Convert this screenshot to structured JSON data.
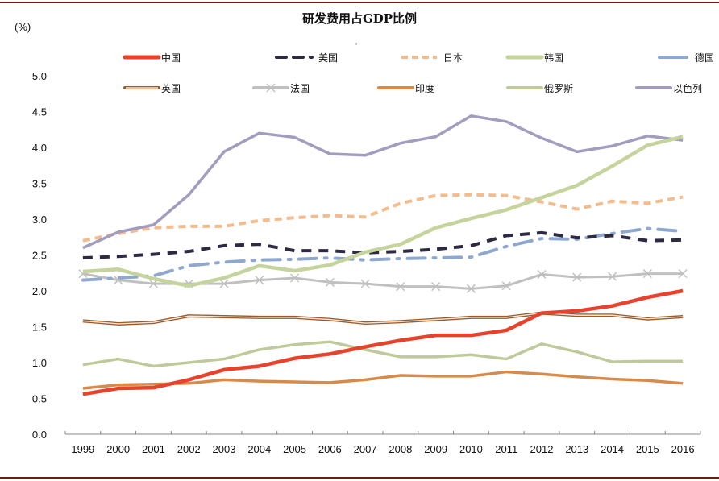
{
  "header": {
    "title": "研发费用占GDP比例",
    "unit_label": "(%)",
    "stray_mark": "‘"
  },
  "colors": {
    "rule": "#6b1d14",
    "axis": "#888888"
  },
  "chart_data": {
    "type": "line",
    "title": "研发费用占GDP比例",
    "xlabel": "",
    "ylabel": "(%)",
    "ylim": [
      0.0,
      5.0
    ],
    "y_ticks": [
      "0.0",
      "0.5",
      "1.0",
      "1.5",
      "2.0",
      "2.5",
      "3.0",
      "3.5",
      "4.0",
      "4.5",
      "5.0"
    ],
    "grid": false,
    "legend_position": "top",
    "categories": [
      "1999",
      "2000",
      "2001",
      "2002",
      "2003",
      "2004",
      "2005",
      "2006",
      "2007",
      "2008",
      "2009",
      "2010",
      "2011",
      "2012",
      "2013",
      "2014",
      "2015",
      "2016"
    ],
    "series": [
      {
        "name": "中国",
        "style": "solid",
        "color": "#e8412c",
        "values": [
          0.56,
          0.64,
          0.65,
          0.76,
          0.9,
          0.95,
          1.06,
          1.12,
          1.22,
          1.31,
          1.38,
          1.38,
          1.45,
          1.69,
          1.72,
          1.79,
          1.91,
          2.0
        ]
      },
      {
        "name": "美国",
        "style": "dash",
        "color": "#2e2a44",
        "values": [
          2.46,
          2.48,
          2.51,
          2.55,
          2.63,
          2.65,
          2.56,
          2.56,
          2.53,
          2.55,
          2.58,
          2.63,
          2.77,
          2.81,
          2.74,
          2.77,
          2.7,
          2.71
        ]
      },
      {
        "name": "日本",
        "style": "shortdash",
        "color": "#f4bc8c",
        "values": [
          2.7,
          2.8,
          2.88,
          2.9,
          2.9,
          2.98,
          3.02,
          3.05,
          3.03,
          3.22,
          3.33,
          3.34,
          3.33,
          3.24,
          3.14,
          3.25,
          3.22,
          3.31
        ]
      },
      {
        "name": "韩国",
        "style": "solid",
        "color": "#c5d49c",
        "values": [
          2.27,
          2.3,
          2.17,
          2.07,
          2.18,
          2.35,
          2.28,
          2.36,
          2.54,
          2.65,
          2.88,
          3.01,
          3.13,
          3.3,
          3.47,
          3.74,
          4.03,
          4.15
        ]
      },
      {
        "name": "德国",
        "style": "dashdot",
        "color": "#8ea8cf",
        "values": [
          2.15,
          2.18,
          2.21,
          2.35,
          2.4,
          2.43,
          2.44,
          2.46,
          2.43,
          2.45,
          2.46,
          2.47,
          2.62,
          2.73,
          2.72,
          2.8,
          2.87,
          2.83
        ]
      },
      {
        "name": "英国",
        "style": "double",
        "color": "#9a5a2a",
        "values": [
          1.58,
          1.54,
          1.56,
          1.65,
          1.64,
          1.63,
          1.63,
          1.6,
          1.55,
          1.57,
          1.6,
          1.63,
          1.63,
          1.69,
          1.66,
          1.66,
          1.61,
          1.64
        ]
      },
      {
        "name": "法国",
        "style": "cross",
        "color": "#c0c0c0",
        "values": [
          2.24,
          2.15,
          2.1,
          2.1,
          2.1,
          2.15,
          2.18,
          2.12,
          2.1,
          2.06,
          2.06,
          2.03,
          2.07,
          2.23,
          2.19,
          2.2,
          2.24,
          2.24
        ]
      },
      {
        "name": "印度",
        "style": "solid",
        "color": "#d88a4a",
        "values": [
          0.64,
          0.69,
          0.7,
          0.71,
          0.76,
          0.74,
          0.73,
          0.72,
          0.76,
          0.82,
          0.81,
          0.81,
          0.87,
          0.84,
          0.8,
          0.77,
          0.75,
          0.71
        ]
      },
      {
        "name": "俄罗斯",
        "style": "solid",
        "color": "#bfca9a",
        "values": [
          0.97,
          1.05,
          0.95,
          1.0,
          1.05,
          1.18,
          1.25,
          1.29,
          1.18,
          1.08,
          1.08,
          1.11,
          1.05,
          1.26,
          1.15,
          1.01,
          1.02,
          1.02
        ]
      },
      {
        "name": "以色列",
        "style": "solid",
        "color": "#a39cbf",
        "values": [
          2.6,
          2.82,
          2.92,
          3.34,
          3.94,
          4.2,
          4.14,
          3.91,
          3.89,
          4.06,
          4.15,
          4.44,
          4.36,
          4.13,
          3.94,
          4.02,
          4.16,
          4.1
        ]
      }
    ]
  }
}
